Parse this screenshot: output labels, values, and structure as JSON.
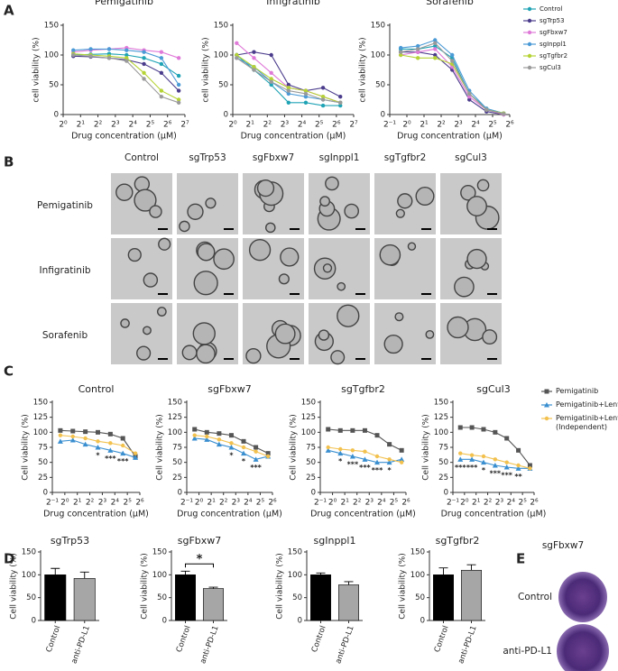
{
  "panel_labels": [
    "A",
    "B",
    "C",
    "D",
    "E"
  ],
  "chart_data": [
    {
      "type": "line",
      "title": "Pemigatinib",
      "xlabel": "Drug concentration (μM)",
      "ylabel": "cell viability (%)",
      "x_scale": "log",
      "x": [
        1.5,
        3,
        6.25,
        12.5,
        25,
        50,
        100
      ],
      "xlim": [
        1,
        128
      ],
      "xticks": [
        {
          "value": 1,
          "label": "2⁰"
        },
        {
          "value": 2,
          "label": "2¹"
        },
        {
          "value": 4,
          "label": "2²"
        },
        {
          "value": 8,
          "label": "2³"
        },
        {
          "value": 16,
          "label": "2⁴"
        },
        {
          "value": 32,
          "label": "2⁵"
        },
        {
          "value": 64,
          "label": "2⁶"
        },
        {
          "value": 128,
          "label": "2⁷"
        }
      ],
      "ylim": [
        0,
        150
      ],
      "yticks": [
        0,
        50,
        100,
        150
      ],
      "legend": true,
      "series": [
        {
          "name": "Control",
          "color": "#1fa3b5",
          "marker": "circle",
          "values": [
            100,
            101,
            102,
            100,
            95,
            85,
            65
          ]
        },
        {
          "name": "sgTrp53",
          "color": "#4b3c8c",
          "marker": "circle",
          "values": [
            98,
            97,
            95,
            92,
            85,
            70,
            40
          ]
        },
        {
          "name": "sgFbxw7",
          "color": "#e07ad8",
          "marker": "circle",
          "values": [
            105,
            108,
            110,
            112,
            108,
            105,
            95
          ]
        },
        {
          "name": "sgInppl1",
          "color": "#4b9ad6",
          "marker": "circle",
          "values": [
            108,
            110,
            110,
            108,
            105,
            95,
            50
          ]
        },
        {
          "name": "sgTgfbr2",
          "color": "#b5d334",
          "marker": "circle",
          "values": [
            102,
            100,
            98,
            95,
            70,
            40,
            25
          ]
        },
        {
          "name": "sgCul3",
          "color": "#9a9a9a",
          "marker": "circle",
          "values": [
            100,
            98,
            95,
            90,
            60,
            30,
            20
          ]
        }
      ]
    },
    {
      "type": "line",
      "title": "Infigratinib",
      "xlabel": "Drug concentration (μM)",
      "ylabel": "cell viability (%)",
      "x_scale": "log",
      "x": [
        1.17,
        2.34,
        4.69,
        9.38,
        18.75,
        37.5,
        75
      ],
      "xlim": [
        1,
        128
      ],
      "xticks": [
        {
          "value": 1,
          "label": "2⁰"
        },
        {
          "value": 2,
          "label": "2¹"
        },
        {
          "value": 4,
          "label": "2²"
        },
        {
          "value": 8,
          "label": "2³"
        },
        {
          "value": 16,
          "label": "2⁴"
        },
        {
          "value": 32,
          "label": "2⁵"
        },
        {
          "value": 64,
          "label": "2⁶"
        },
        {
          "value": 128,
          "label": "2⁷"
        }
      ],
      "ylim": [
        0,
        150
      ],
      "yticks": [
        0,
        50,
        100,
        150
      ],
      "series": [
        {
          "color": "#1fa3b5",
          "marker": "circle",
          "values": [
            100,
            75,
            50,
            20,
            20,
            15,
            15
          ]
        },
        {
          "color": "#4b3c8c",
          "marker": "circle",
          "values": [
            100,
            105,
            100,
            50,
            40,
            45,
            30
          ]
        },
        {
          "color": "#e07ad8",
          "marker": "circle",
          "values": [
            120,
            95,
            70,
            45,
            40,
            30,
            20
          ]
        },
        {
          "color": "#4b9ad6",
          "marker": "circle",
          "values": [
            95,
            80,
            55,
            35,
            30,
            25,
            20
          ]
        },
        {
          "color": "#b5d334",
          "marker": "circle",
          "values": [
            100,
            80,
            60,
            45,
            40,
            30,
            20
          ]
        },
        {
          "color": "#9a9a9a",
          "marker": "circle",
          "values": [
            95,
            75,
            55,
            40,
            35,
            25,
            20
          ]
        }
      ]
    },
    {
      "type": "line",
      "title": "Sorafenib",
      "xlabel": "Drug concentration (μM)",
      "ylabel": "cell viability (%)",
      "x_scale": "log",
      "x": [
        0.78,
        1.56,
        3.125,
        6.25,
        12.5,
        25,
        50
      ],
      "xlim": [
        0.5,
        64
      ],
      "xticks": [
        {
          "value": 0.5,
          "label": "2⁻¹"
        },
        {
          "value": 1,
          "label": "2⁰"
        },
        {
          "value": 2,
          "label": "2¹"
        },
        {
          "value": 4,
          "label": "2²"
        },
        {
          "value": 8,
          "label": "2³"
        },
        {
          "value": 16,
          "label": "2⁴"
        },
        {
          "value": 32,
          "label": "2⁵"
        },
        {
          "value": 64,
          "label": "2⁶"
        }
      ],
      "ylim": [
        0,
        150
      ],
      "yticks": [
        0,
        50,
        100,
        150
      ],
      "series": [
        {
          "color": "#1fa3b5",
          "marker": "circle",
          "values": [
            110,
            110,
            115,
            95,
            35,
            10,
            2
          ]
        },
        {
          "color": "#4b3c8c",
          "marker": "circle",
          "values": [
            105,
            105,
            100,
            75,
            25,
            5,
            0
          ]
        },
        {
          "color": "#e07ad8",
          "marker": "circle",
          "values": [
            100,
            105,
            110,
            80,
            30,
            8,
            0
          ]
        },
        {
          "color": "#4b9ad6",
          "marker": "circle",
          "values": [
            112,
            115,
            125,
            100,
            40,
            10,
            2
          ]
        },
        {
          "color": "#b5d334",
          "marker": "circle",
          "values": [
            100,
            95,
            95,
            85,
            35,
            8,
            2
          ]
        },
        {
          "color": "#9a9a9a",
          "marker": "circle",
          "values": [
            105,
            110,
            120,
            90,
            35,
            8,
            1
          ]
        }
      ]
    },
    {
      "type": "line",
      "title": "Control",
      "xlabel": "Drug concentration (μM)",
      "ylabel": "Cell viability (%)",
      "x_scale": "log",
      "x": [
        0.78,
        1.56,
        3.125,
        6.25,
        12.5,
        25,
        50
      ],
      "xlim": [
        0.5,
        64
      ],
      "xticks": [
        {
          "value": 0.5,
          "label": "2⁻¹"
        },
        {
          "value": 1,
          "label": "2⁰"
        },
        {
          "value": 2,
          "label": "2¹"
        },
        {
          "value": 4,
          "label": "2²"
        },
        {
          "value": 8,
          "label": "2³"
        },
        {
          "value": 16,
          "label": "2⁴"
        },
        {
          "value": 32,
          "label": "2⁵"
        },
        {
          "value": 64,
          "label": "2⁶"
        }
      ],
      "ylim": [
        0,
        150
      ],
      "yticks": [
        0,
        25,
        50,
        75,
        100,
        125,
        150
      ],
      "significance": [
        null,
        null,
        null,
        "*",
        "***",
        "***",
        null
      ],
      "series": [
        {
          "color": "#555555",
          "marker": "square",
          "values": [
            103,
            102,
            101,
            100,
            97,
            90,
            60
          ]
        },
        {
          "color": "#3a8fd0",
          "marker": "triangle",
          "values": [
            85,
            87,
            80,
            75,
            70,
            65,
            58
          ]
        },
        {
          "color": "#f2c14e",
          "marker": "circle",
          "values": [
            95,
            93,
            90,
            85,
            82,
            78,
            65
          ]
        }
      ]
    },
    {
      "type": "line",
      "title": "sgFbxw7",
      "xlabel": "Drug concentration (μM)",
      "ylabel": "Cell viability (%)",
      "x_scale": "log",
      "x": [
        0.78,
        1.56,
        3.125,
        6.25,
        12.5,
        25,
        50
      ],
      "xlim": [
        0.5,
        64
      ],
      "xticks": [
        {
          "value": 0.5,
          "label": "2⁻¹"
        },
        {
          "value": 1,
          "label": "2⁰"
        },
        {
          "value": 2,
          "label": "2¹"
        },
        {
          "value": 4,
          "label": "2²"
        },
        {
          "value": 8,
          "label": "2³"
        },
        {
          "value": 16,
          "label": "2⁴"
        },
        {
          "value": 32,
          "label": "2⁵"
        },
        {
          "value": 64,
          "label": "2⁶"
        }
      ],
      "ylim": [
        0,
        150
      ],
      "yticks": [
        0,
        25,
        50,
        75,
        100,
        125,
        150
      ],
      "significance": [
        null,
        null,
        null,
        "*",
        "*",
        "***",
        null
      ],
      "series": [
        {
          "color": "#555555",
          "marker": "square",
          "values": [
            105,
            100,
            98,
            95,
            85,
            75,
            65
          ]
        },
        {
          "color": "#3a8fd0",
          "marker": "triangle",
          "values": [
            90,
            88,
            80,
            75,
            65,
            55,
            60
          ]
        },
        {
          "color": "#f2c14e",
          "marker": "circle",
          "values": [
            95,
            93,
            88,
            82,
            75,
            68,
            60
          ]
        }
      ]
    },
    {
      "type": "line",
      "title": "sgTgfbr2",
      "xlabel": "Drug concentration (μM)",
      "ylabel": "Cell viability (%)",
      "x_scale": "log",
      "x": [
        0.78,
        1.56,
        3.125,
        6.25,
        12.5,
        25,
        50
      ],
      "xlim": [
        0.5,
        64
      ],
      "xticks": [
        {
          "value": 0.5,
          "label": "2⁻¹"
        },
        {
          "value": 1,
          "label": "2⁰"
        },
        {
          "value": 2,
          "label": "2¹"
        },
        {
          "value": 4,
          "label": "2²"
        },
        {
          "value": 8,
          "label": "2³"
        },
        {
          "value": 16,
          "label": "2⁴"
        },
        {
          "value": 32,
          "label": "2⁵"
        },
        {
          "value": 64,
          "label": "2⁶"
        }
      ],
      "ylim": [
        0,
        150
      ],
      "yticks": [
        0,
        25,
        50,
        75,
        100,
        125,
        150
      ],
      "significance": [
        null,
        "*",
        "***",
        "***",
        "***",
        "*",
        null
      ],
      "series": [
        {
          "color": "#555555",
          "marker": "square",
          "values": [
            105,
            103,
            103,
            103,
            95,
            80,
            70
          ]
        },
        {
          "color": "#3a8fd0",
          "marker": "triangle",
          "values": [
            70,
            65,
            60,
            55,
            50,
            50,
            55
          ]
        },
        {
          "color": "#f2c14e",
          "marker": "circle",
          "values": [
            75,
            72,
            70,
            68,
            60,
            55,
            50
          ]
        }
      ]
    },
    {
      "type": "line",
      "title": "sgCul3",
      "xlabel": "Drug concentration (μM)",
      "ylabel": "Cell viability (%)",
      "x_scale": "log",
      "x": [
        0.78,
        1.56,
        3.125,
        6.25,
        12.5,
        25,
        50
      ],
      "xlim": [
        0.5,
        64
      ],
      "xticks": [
        {
          "value": 0.5,
          "label": "2⁻¹"
        },
        {
          "value": 1,
          "label": "2⁰"
        },
        {
          "value": 2,
          "label": "2¹"
        },
        {
          "value": 4,
          "label": "2²"
        },
        {
          "value": 8,
          "label": "2³"
        },
        {
          "value": 16,
          "label": "2⁴"
        },
        {
          "value": 32,
          "label": "2⁵"
        },
        {
          "value": 64,
          "label": "2⁶"
        }
      ],
      "ylim": [
        0,
        150
      ],
      "yticks": [
        0,
        25,
        50,
        75,
        100,
        125,
        150
      ],
      "significance": [
        "***",
        "***",
        "*",
        "***",
        "***",
        "**",
        null
      ],
      "legend": true,
      "series": [
        {
          "name": "Pemigatinib",
          "color": "#555555",
          "marker": "square",
          "values": [
            108,
            108,
            105,
            100,
            90,
            70,
            45
          ]
        },
        {
          "name": "Pemigatinib+Lenvatinib",
          "color": "#3a8fd0",
          "marker": "triangle",
          "values": [
            55,
            55,
            50,
            45,
            42,
            40,
            40
          ]
        },
        {
          "name": "Pemigatinib+Lenvatinib (Independent)",
          "color": "#f2c14e",
          "marker": "circle",
          "values": [
            65,
            62,
            60,
            55,
            50,
            45,
            40
          ]
        }
      ]
    },
    {
      "type": "bar",
      "title": "sgTrp53",
      "ylabel": "Cell viability (%)",
      "categories": [
        "Control",
        "anti-PD-L1"
      ],
      "values": [
        100,
        92
      ],
      "errors": [
        14,
        14
      ],
      "colors": [
        "#000000",
        "#a6a6a6"
      ],
      "ylim": [
        0,
        150
      ],
      "yticks": [
        0,
        50,
        100,
        150
      ]
    },
    {
      "type": "bar",
      "title": "sgFbxw7",
      "ylabel": "Cell viability (%)",
      "categories": [
        "Control",
        "anti-PD-L1"
      ],
      "values": [
        100,
        70
      ],
      "errors": [
        8,
        3
      ],
      "colors": [
        "#000000",
        "#a6a6a6"
      ],
      "ylim": [
        0,
        150
      ],
      "yticks": [
        0,
        50,
        100,
        150
      ],
      "significance": "*"
    },
    {
      "type": "bar",
      "title": "sgInppl1",
      "ylabel": "Cell viability (%)",
      "categories": [
        "Control",
        "anti-PD-L1"
      ],
      "values": [
        100,
        78
      ],
      "errors": [
        4,
        7
      ],
      "colors": [
        "#000000",
        "#a6a6a6"
      ],
      "ylim": [
        0,
        150
      ],
      "yticks": [
        0,
        50,
        100,
        150
      ]
    },
    {
      "type": "bar",
      "title": "sgTgfbr2",
      "ylabel": "Cell viability (%)",
      "categories": [
        "Control",
        "anti-PD-L1"
      ],
      "values": [
        100,
        110
      ],
      "errors": [
        15,
        12
      ],
      "colors": [
        "#000000",
        "#a6a6a6"
      ],
      "ylim": [
        0,
        150
      ],
      "yticks": [
        0,
        50,
        100,
        150
      ]
    }
  ],
  "panel_b": {
    "columns": [
      "Control",
      "sgTrp53",
      "sgFbxw7",
      "sgInppl1",
      "sgTgfbr2",
      "sgCul3"
    ],
    "rows": [
      "Pemigatinib",
      "Infigratinib",
      "Sorafenib"
    ]
  },
  "panel_e": {
    "title": "sgFbxw7",
    "rows": [
      "Control",
      "anti-PD-L1"
    ]
  }
}
